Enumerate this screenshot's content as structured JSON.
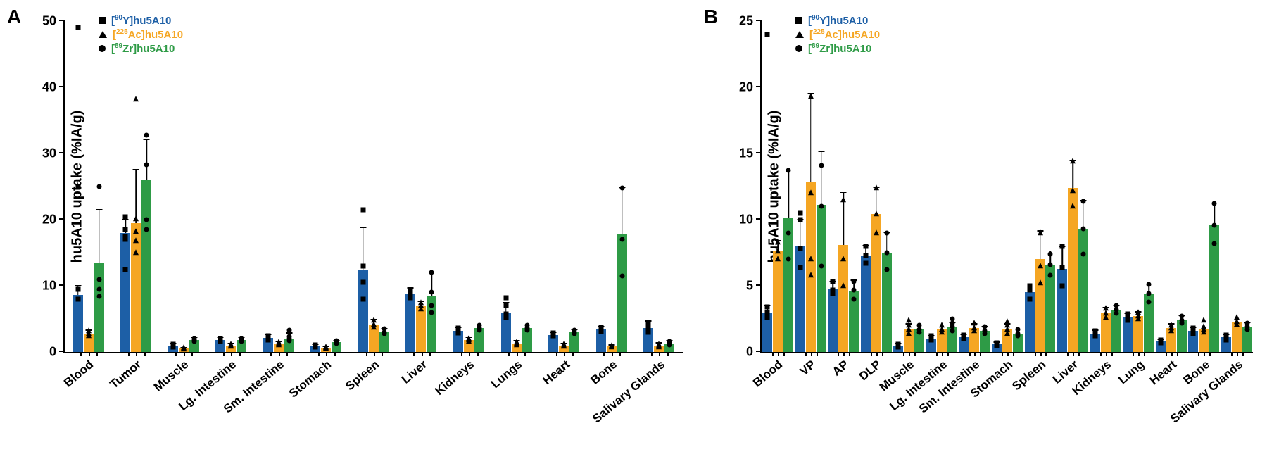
{
  "figure": {
    "background_color": "#ffffff",
    "axis_color": "#000000",
    "text_color": "#000000",
    "panel_label_fontsize": 28,
    "axis_label_fontsize": 20,
    "tick_label_fontsize": 18,
    "category_label_fontsize": 17,
    "legend_fontsize": 15,
    "x_label_rotation_deg": -40
  },
  "series_meta": [
    {
      "key": "y90",
      "label_html": "[<sup>90</sup>Y]hu5A10",
      "color": "#1d5fa6",
      "marker": "square"
    },
    {
      "key": "ac225",
      "label_html": "[<sup>225</sup>Ac]hu5A10",
      "color": "#f5a623",
      "marker": "triangle"
    },
    {
      "key": "zr89",
      "label_html": "[<sup>89</sup>Zr]hu5A10",
      "color": "#2e9b46",
      "marker": "circle"
    }
  ],
  "panelA": {
    "label": "A",
    "type": "grouped_bar_with_error_and_scatter",
    "y_axis_label": "hu5A10 uptake (%IA/g)",
    "ylim": [
      0,
      50
    ],
    "ytick_step": 10,
    "categories": [
      "Blood",
      "Tumor",
      "Muscle",
      "Lg. Intestine",
      "Sm. Intestine",
      "Stomach",
      "Spleen",
      "Liver",
      "Kidneys",
      "Lungs",
      "Heart",
      "Bone",
      "Salivary Glands"
    ],
    "data": {
      "y90": {
        "mean": [
          8.6,
          18.0,
          1.0,
          1.8,
          2.1,
          0.9,
          12.5,
          8.8,
          3.2,
          6.0,
          2.6,
          3.4,
          3.6
        ],
        "sd": [
          1.3,
          2.0,
          0.2,
          0.3,
          0.5,
          0.2,
          6.2,
          0.8,
          0.4,
          1.4,
          0.3,
          0.4,
          1.0
        ],
        "points": [
          [
            8.0,
            9.5,
            25.0,
            49.0
          ],
          [
            17.0,
            17.4,
            18.5,
            20.4,
            12.5
          ],
          [
            1.0,
            1.2,
            0.8
          ],
          [
            1.6,
            1.9,
            2.0
          ],
          [
            1.8,
            2.1,
            2.5
          ],
          [
            0.8,
            0.9,
            1.1
          ],
          [
            8.0,
            10.5,
            13.0,
            21.5
          ],
          [
            8.2,
            8.8,
            9.4
          ],
          [
            2.9,
            3.1,
            3.6
          ],
          [
            5.2,
            5.8,
            7.0,
            8.2
          ],
          [
            2.4,
            2.6,
            2.9
          ],
          [
            3.1,
            3.4,
            3.7
          ],
          [
            3.0,
            3.5,
            4.3,
            4.3
          ]
        ]
      },
      "ac225": {
        "mean": [
          2.8,
          19.5,
          0.5,
          1.0,
          1.3,
          0.6,
          4.2,
          7.0,
          1.8,
          1.3,
          1.0,
          0.8,
          1.0
        ],
        "sd": [
          0.4,
          8.0,
          0.1,
          0.2,
          0.2,
          0.2,
          0.6,
          0.6,
          0.3,
          0.3,
          0.2,
          0.2,
          0.3
        ],
        "points": [
          [
            2.5,
            2.8,
            3.2
          ],
          [
            15.0,
            16.8,
            18.2,
            20.1,
            38.2
          ],
          [
            0.4,
            0.5,
            0.6
          ],
          [
            0.9,
            1.0,
            1.2
          ],
          [
            1.1,
            1.3,
            1.5
          ],
          [
            0.5,
            0.6,
            0.8
          ],
          [
            3.7,
            4.1,
            4.8
          ],
          [
            6.5,
            7.0,
            7.5
          ],
          [
            1.6,
            1.8,
            2.0
          ],
          [
            1.1,
            1.3,
            1.5
          ],
          [
            0.9,
            1.0,
            1.2
          ],
          [
            0.7,
            0.8,
            1.0
          ],
          [
            0.8,
            1.0,
            1.2
          ]
        ]
      },
      "zr89": {
        "mean": [
          13.4,
          26.0,
          1.8,
          1.8,
          2.0,
          1.5,
          3.1,
          8.5,
          3.6,
          3.6,
          3.0,
          17.8,
          1.3
        ],
        "sd": [
          8.0,
          6.0,
          0.3,
          0.3,
          0.8,
          0.2,
          0.4,
          3.5,
          0.4,
          0.4,
          0.3,
          7.0,
          0.3
        ],
        "points": [
          [
            8.4,
            9.5,
            11.0,
            25.0
          ],
          [
            18.5,
            20.0,
            28.3,
            32.8
          ],
          [
            1.6,
            1.8,
            2.0
          ],
          [
            1.6,
            1.8,
            2.0
          ],
          [
            1.7,
            2.0,
            2.3,
            3.3
          ],
          [
            1.3,
            1.5,
            1.7
          ],
          [
            2.8,
            3.0,
            3.5
          ],
          [
            6.0,
            7.0,
            9.0,
            12.0
          ],
          [
            3.3,
            3.6,
            4.0
          ],
          [
            3.3,
            3.6,
            4.0
          ],
          [
            2.8,
            3.0,
            3.3
          ],
          [
            11.5,
            17.0,
            24.8
          ],
          [
            1.1,
            1.3,
            1.6
          ]
        ]
      }
    }
  },
  "panelB": {
    "label": "B",
    "type": "grouped_bar_with_error_and_scatter",
    "y_axis_label": "hu5A10 uptake (%IA/g)",
    "ylim": [
      0,
      25
    ],
    "ytick_step": 5,
    "categories": [
      "Blood",
      "VP",
      "AP",
      "DLP",
      "Muscle",
      "Lg. Intestine",
      "Sm. Intestine",
      "Stomach",
      "Spleen",
      "Liver",
      "Kidneys",
      "Lung",
      "Heart",
      "Bone",
      "Salivary Glands"
    ],
    "data": {
      "y90": {
        "mean": [
          3.0,
          8.0,
          4.8,
          7.3,
          0.5,
          1.0,
          1.1,
          0.6,
          4.5,
          6.3,
          1.4,
          2.6,
          0.8,
          1.6,
          1.1
        ],
        "sd": [
          0.5,
          2.0,
          0.5,
          0.7,
          0.1,
          0.2,
          0.2,
          0.1,
          0.6,
          1.6,
          0.2,
          0.3,
          0.1,
          0.2,
          0.2
        ],
        "points": [
          [
            2.6,
            3.0,
            3.4,
            24.0
          ],
          [
            6.4,
            7.8,
            10.0,
            10.5
          ],
          [
            4.4,
            4.7,
            5.3
          ],
          [
            6.7,
            7.3,
            8.0
          ],
          [
            0.4,
            0.5,
            0.6
          ],
          [
            0.9,
            1.0,
            1.2
          ],
          [
            1.0,
            1.1,
            1.3
          ],
          [
            0.5,
            0.6,
            0.7
          ],
          [
            4.0,
            4.7,
            5.0
          ],
          [
            5.0,
            6.4,
            8.0
          ],
          [
            1.2,
            1.4,
            1.6
          ],
          [
            2.4,
            2.6,
            2.9
          ],
          [
            0.7,
            0.8,
            0.9
          ],
          [
            1.4,
            1.6,
            1.8
          ],
          [
            0.9,
            1.1,
            1.3
          ]
        ]
      },
      "ac225": {
        "mean": [
          7.6,
          12.8,
          8.1,
          10.4,
          1.7,
          1.7,
          1.8,
          1.7,
          7.0,
          12.4,
          2.9,
          2.7,
          1.8,
          1.7,
          2.3
        ],
        "sd": [
          0.8,
          6.7,
          3.9,
          2.0,
          0.4,
          0.3,
          0.3,
          0.4,
          2.1,
          2.0,
          0.4,
          0.3,
          0.3,
          0.3,
          0.3
        ],
        "points": [
          [
            7.0,
            7.6,
            8.3
          ],
          [
            5.8,
            7.0,
            12.0,
            19.3
          ],
          [
            5.0,
            7.0,
            11.5
          ],
          [
            9.0,
            10.4,
            12.4
          ],
          [
            1.4,
            1.7,
            2.0,
            2.4
          ],
          [
            1.5,
            1.7,
            2.0
          ],
          [
            1.6,
            1.8,
            2.2
          ],
          [
            1.4,
            1.7,
            2.0,
            2.3
          ],
          [
            5.2,
            6.5,
            9.0
          ],
          [
            11.0,
            12.2,
            14.4
          ],
          [
            2.6,
            2.9,
            3.3
          ],
          [
            2.5,
            2.7,
            3.0
          ],
          [
            1.6,
            1.8,
            2.0
          ],
          [
            1.5,
            1.7,
            1.9,
            2.4
          ],
          [
            2.1,
            2.3,
            2.6
          ]
        ]
      },
      "zr89": {
        "mean": [
          10.1,
          11.1,
          4.6,
          7.5,
          1.7,
          1.9,
          1.6,
          1.4,
          6.6,
          9.3,
          3.2,
          4.4,
          2.4,
          9.6,
          1.9
        ],
        "sd": [
          3.6,
          4.0,
          0.8,
          1.5,
          0.3,
          0.3,
          0.3,
          0.3,
          1.0,
          2.1,
          0.3,
          0.7,
          0.3,
          1.6,
          0.3
        ],
        "points": [
          [
            7.0,
            9.0,
            13.7
          ],
          [
            6.5,
            11.0,
            14.1
          ],
          [
            4.0,
            4.7,
            5.3
          ],
          [
            6.2,
            7.5,
            9.0
          ],
          [
            1.5,
            1.7,
            2.0
          ],
          [
            1.6,
            1.9,
            2.2,
            2.5
          ],
          [
            1.4,
            1.6,
            1.9
          ],
          [
            1.2,
            1.4,
            1.7
          ],
          [
            5.8,
            6.6,
            7.4
          ],
          [
            7.4,
            9.3,
            11.4
          ],
          [
            2.9,
            3.2,
            3.5
          ],
          [
            3.8,
            4.4,
            5.1
          ],
          [
            2.2,
            2.4,
            2.7
          ],
          [
            8.2,
            9.6,
            11.2
          ],
          [
            1.7,
            1.9,
            2.2
          ]
        ]
      }
    }
  }
}
